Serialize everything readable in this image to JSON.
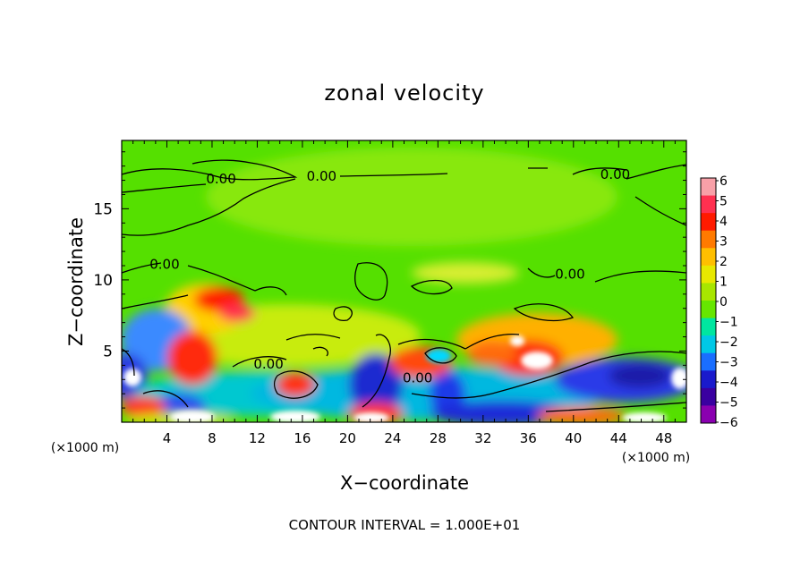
{
  "chart_data": {
    "type": "heatmap",
    "title": "zonal velocity",
    "xlabel": "X−coordinate",
    "ylabel": "Z−coordinate",
    "x_unit_left": "(×1000 m)",
    "x_unit_right": "(×1000 m)",
    "footer": "CONTOUR INTERVAL = 1.000E+01",
    "xlim": [
      0,
      50
    ],
    "ylim": [
      0,
      19.8
    ],
    "x_ticks": [
      "4",
      "8",
      "12",
      "16",
      "20",
      "24",
      "28",
      "32",
      "36",
      "40",
      "44",
      "48"
    ],
    "x_tick_values": [
      4,
      8,
      12,
      16,
      20,
      24,
      28,
      32,
      36,
      40,
      44,
      48
    ],
    "y_ticks": [
      "5",
      "10",
      "15"
    ],
    "y_tick_values": [
      5,
      10,
      15
    ],
    "colorbar": {
      "ticks": [
        "6",
        "5",
        "4",
        "3",
        "2",
        "1",
        "0",
        "−1",
        "−2",
        "−3",
        "−4",
        "−5",
        "−6"
      ],
      "tick_values": [
        6,
        5,
        4,
        3,
        2,
        1,
        0,
        -1,
        -2,
        -3,
        -4,
        -5,
        -6
      ],
      "colors": [
        "#f8a0a8",
        "#ff3050",
        "#ff1a00",
        "#ff7a00",
        "#ffbf00",
        "#e8e800",
        "#a8e600",
        "#66e600",
        "#00e6a0",
        "#00c8e6",
        "#1a6eff",
        "#1a1acc",
        "#3a00a0",
        "#8a00b0"
      ]
    },
    "contour_labels": [
      {
        "text": "0.00",
        "x": 8.8,
        "z": 17.1
      },
      {
        "text": "0.00",
        "x": 17.7,
        "z": 17.3
      },
      {
        "text": "0.00",
        "x": 43.7,
        "z": 17.4
      },
      {
        "text": "0.00",
        "x": 3.8,
        "z": 11.1
      },
      {
        "text": "0.00",
        "x": 39.7,
        "z": 10.4
      },
      {
        "text": "0.00",
        "x": 13.0,
        "z": 4.1
      },
      {
        "text": "0.00",
        "x": 26.2,
        "z": 3.1
      }
    ]
  }
}
